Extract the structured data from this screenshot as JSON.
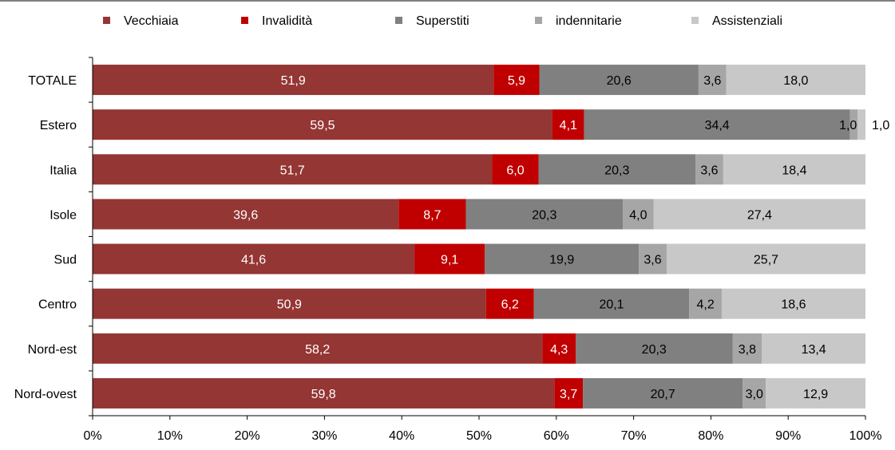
{
  "chart_data": {
    "type": "bar",
    "orientation": "horizontal",
    "stacked": true,
    "percent_stacked": true,
    "categories": [
      "TOTALE",
      "Estero",
      "Italia",
      "Isole",
      "Sud",
      "Centro",
      "Nord-est",
      "Nord-ovest"
    ],
    "series": [
      {
        "name": "Vecchiaia",
        "color": "#943634",
        "values": [
          51.9,
          59.5,
          51.7,
          39.6,
          41.6,
          50.9,
          58.2,
          59.8
        ],
        "labels": [
          "51,9",
          "59,5",
          "51,7",
          "39,6",
          "41,6",
          "50,9",
          "58,2",
          "59,8"
        ]
      },
      {
        "name": "Invalidità",
        "color": "#c00000",
        "values": [
          5.9,
          4.1,
          6.0,
          8.7,
          9.1,
          6.2,
          4.3,
          3.7
        ],
        "labels": [
          "5,9",
          "4,1",
          "6,0",
          "8,7",
          "9,1",
          "6,2",
          "4,3",
          "3,7"
        ]
      },
      {
        "name": "Superstiti",
        "color": "#808080",
        "values": [
          20.6,
          34.4,
          20.3,
          20.3,
          19.9,
          20.1,
          20.3,
          20.7
        ],
        "labels": [
          "20,6",
          "34,4",
          "20,3",
          "20,3",
          "19,9",
          "20,1",
          "20,3",
          "20,7"
        ]
      },
      {
        "name": "indennitarie",
        "color": "#a6a6a6",
        "values": [
          3.6,
          1.0,
          3.6,
          4.0,
          3.6,
          4.2,
          3.8,
          3.0
        ],
        "labels": [
          "3,6",
          "1,0",
          "3,6",
          "4,0",
          "3,6",
          "4,2",
          "3,8",
          "3,0"
        ]
      },
      {
        "name": "Assistenziali",
        "color": "#c8c8c8",
        "values": [
          18.0,
          1.0,
          18.4,
          27.4,
          25.7,
          18.6,
          13.4,
          12.9
        ],
        "labels": [
          "18,0",
          "1,0",
          "18,4",
          "27,4",
          "25,7",
          "18,6",
          "13,4",
          "12,9"
        ]
      }
    ],
    "xlim": [
      0,
      100
    ],
    "x_ticks": [
      "0%",
      "10%",
      "20%",
      "30%",
      "40%",
      "50%",
      "60%",
      "70%",
      "80%",
      "90%",
      "100%"
    ],
    "legend": {
      "position": "top"
    },
    "grid": false
  }
}
